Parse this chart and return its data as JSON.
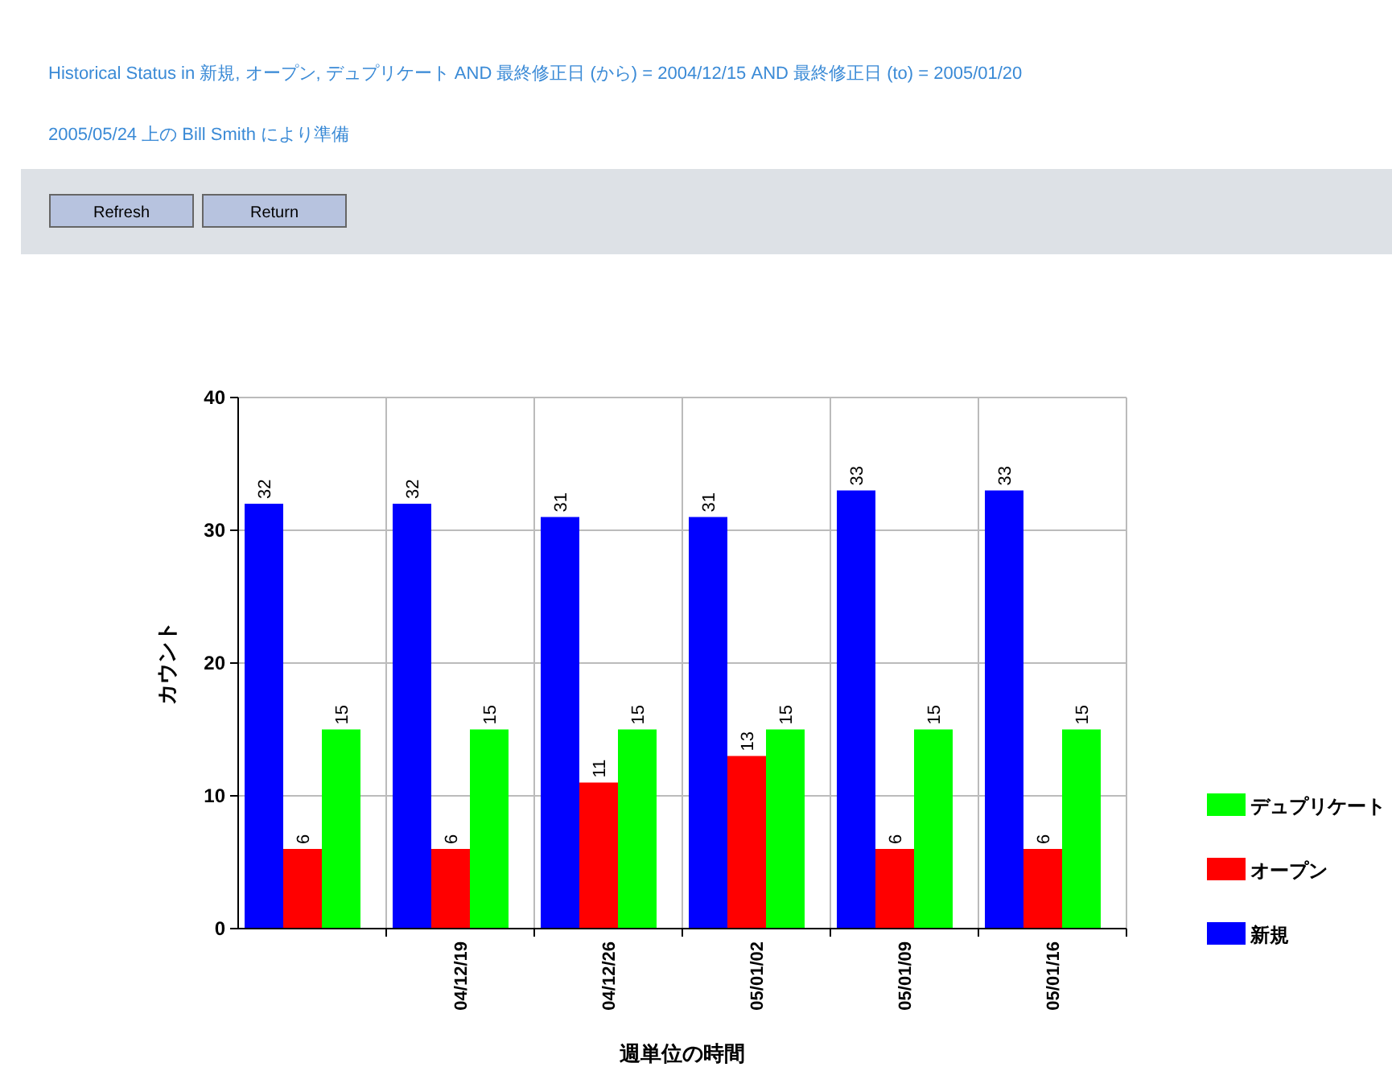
{
  "chart_data": {
    "type": "bar",
    "title": "Historical Status in 新規, オープン, デュプリケート AND 最終修正日 (から) = 2004/12/15 AND 最終修正日 (to) = 2005/01/20",
    "subtitle": "2005/05/24 上の Bill Smith により準備",
    "annotations": [
      "Refresh",
      "Return"
    ],
    "xlabel": "週単位の時間",
    "ylabel": "カウント",
    "categories": [
      null,
      "04/12/19",
      "04/12/26",
      "05/01/02",
      "05/01/09",
      "05/01/16"
    ],
    "series": [
      {
        "name": "新規",
        "color": "#0000ff",
        "values": [
          32,
          32,
          31,
          31,
          33,
          33
        ]
      },
      {
        "name": "オープン",
        "color": "#ff0000",
        "values": [
          6,
          6,
          11,
          13,
          6,
          6
        ]
      },
      {
        "name": "デュプリケート",
        "color": "#00ff00",
        "values": [
          15,
          15,
          15,
          15,
          15,
          15
        ]
      }
    ],
    "ylim": [
      0,
      40
    ],
    "yticks": [
      0,
      10,
      20,
      30,
      40
    ],
    "grid": true,
    "legend": "right",
    "data_labels": true
  }
}
